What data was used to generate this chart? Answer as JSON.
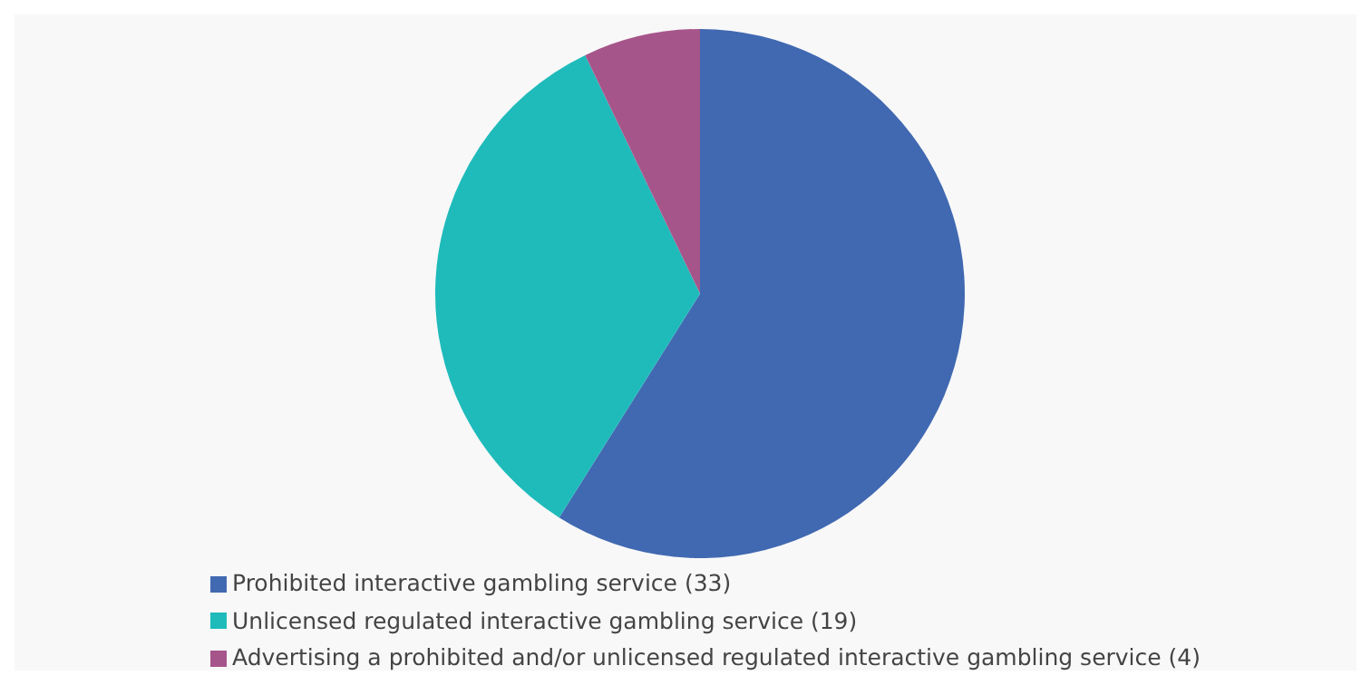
{
  "chart_data": {
    "type": "pie",
    "categories": [
      "Prohibited interactive gambling service (33)",
      "Unlicensed regulated interactive gambling service (19)",
      "Advertising a prohibited and/or unlicensed regulated interactive gambling service (4)"
    ],
    "values": [
      33,
      19,
      4
    ],
    "colors": [
      "#4169b1",
      "#1fbbbb",
      "#a6558a"
    ],
    "legend": "bottom left"
  }
}
